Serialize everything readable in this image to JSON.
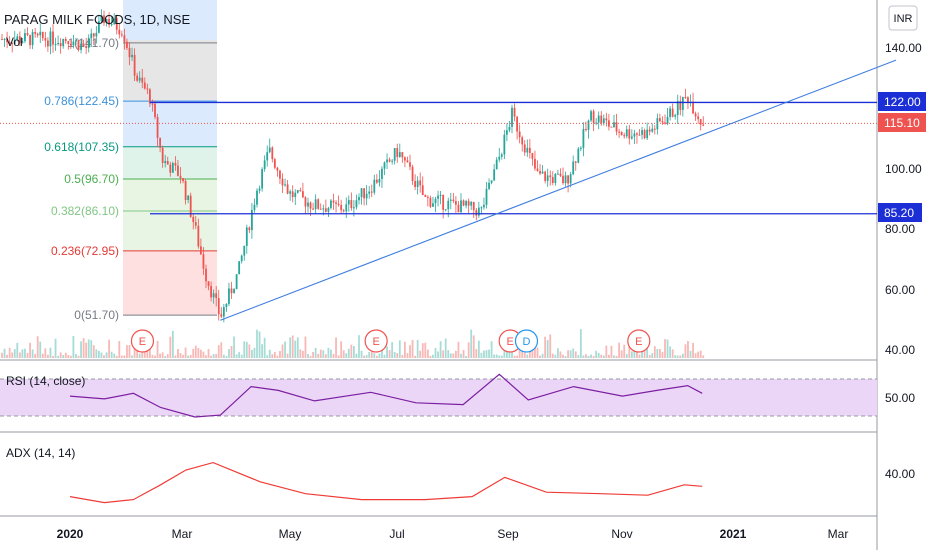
{
  "header": {
    "title": "PARAG MILK FOODS, 1D, NSE",
    "vol_label": "Vol",
    "currency": "INR"
  },
  "colors": {
    "up": "#26a69a",
    "down": "#ef5350",
    "hline": "#1c2fd6",
    "trend": "#3f7ee0",
    "rsi": "#7b1fa2",
    "adx": "#ef3b36",
    "rsi_band": "#ecd6f7",
    "axis_text": "#131722",
    "grid_sep": "#9598a1"
  },
  "chart_data": [
    {
      "type": "candlestick",
      "title": "PARAG MILK FOODS, 1D, NSE",
      "x_labels": [
        "2020",
        "Mar",
        "May",
        "Jul",
        "Sep",
        "Nov",
        "2021",
        "Mar"
      ],
      "y_ticks": [
        "140.00",
        "100.00",
        "80.00",
        "60.00",
        "40.00"
      ],
      "ylim": [
        37,
        153
      ],
      "markers": {
        "price_tags": [
          "122.00",
          "115.10",
          "85.20"
        ],
        "value_levels": [
          122.0,
          115.1,
          85.2
        ]
      },
      "fibonacci": [
        {
          "label": "1(141.70)",
          "value": 141.7,
          "color": "#787b86"
        },
        {
          "label": "0.786(122.45)",
          "value": 122.45,
          "color": "#3d91d9"
        },
        {
          "label": "0.618(107.35)",
          "value": 107.35,
          "color": "#089981"
        },
        {
          "label": "0.5(96.70)",
          "value": 96.7,
          "color": "#4caf50"
        },
        {
          "label": "0.382(86.10)",
          "value": 86.1,
          "color": "#81c784"
        },
        {
          "label": "0.236(72.95)",
          "value": 72.95,
          "color": "#e53935"
        },
        {
          "label": "0(51.70)",
          "value": 51.7,
          "color": "#787b86"
        }
      ],
      "horizontal_lines": [
        122.0,
        85.2
      ],
      "trendline": {
        "from": {
          "date": "2020-03-24",
          "value": 50.0
        },
        "to": {
          "date": "2021-04-01",
          "value": 136.0
        }
      },
      "events": [
        "E",
        "E",
        "E",
        "D",
        "E"
      ],
      "close_path": [
        {
          "date": "2020-01-01",
          "value": 143
        },
        {
          "date": "2020-01-10",
          "value": 140
        },
        {
          "date": "2020-01-20",
          "value": 150
        },
        {
          "date": "2020-01-30",
          "value": 146
        },
        {
          "date": "2020-02-07",
          "value": 130
        },
        {
          "date": "2020-02-14",
          "value": 124
        },
        {
          "date": "2020-02-21",
          "value": 103
        },
        {
          "date": "2020-03-02",
          "value": 98
        },
        {
          "date": "2020-03-09",
          "value": 83
        },
        {
          "date": "2020-03-16",
          "value": 65
        },
        {
          "date": "2020-03-24",
          "value": 51
        },
        {
          "date": "2020-04-03",
          "value": 66
        },
        {
          "date": "2020-04-13",
          "value": 93
        },
        {
          "date": "2020-04-20",
          "value": 106
        },
        {
          "date": "2020-05-01",
          "value": 92
        },
        {
          "date": "2020-05-15",
          "value": 88
        },
        {
          "date": "2020-06-01",
          "value": 87
        },
        {
          "date": "2020-06-15",
          "value": 94
        },
        {
          "date": "2020-06-30",
          "value": 106
        },
        {
          "date": "2020-07-15",
          "value": 90
        },
        {
          "date": "2020-08-01",
          "value": 88
        },
        {
          "date": "2020-08-15",
          "value": 86
        },
        {
          "date": "2020-08-25",
          "value": 104
        },
        {
          "date": "2020-09-01",
          "value": 118
        },
        {
          "date": "2020-09-15",
          "value": 98
        },
        {
          "date": "2020-10-01",
          "value": 96
        },
        {
          "date": "2020-10-15",
          "value": 118
        },
        {
          "date": "2020-11-01",
          "value": 112
        },
        {
          "date": "2020-11-15",
          "value": 112
        },
        {
          "date": "2020-12-01",
          "value": 120
        },
        {
          "date": "2020-12-07",
          "value": 124
        },
        {
          "date": "2020-12-15",
          "value": 115.1
        }
      ]
    },
    {
      "type": "line",
      "title": "RSI (14, close)",
      "y_ticks": [
        "50.00"
      ],
      "band": [
        30,
        70
      ],
      "ylim": [
        20,
        80
      ],
      "series": [
        {
          "name": "RSI (14, close)",
          "points": [
            {
              "date": "2020-01-01",
              "value": 52
            },
            {
              "date": "2020-01-20",
              "value": 49
            },
            {
              "date": "2020-02-05",
              "value": 55
            },
            {
              "date": "2020-02-20",
              "value": 40
            },
            {
              "date": "2020-03-10",
              "value": 30
            },
            {
              "date": "2020-03-24",
              "value": 32
            },
            {
              "date": "2020-04-10",
              "value": 62
            },
            {
              "date": "2020-04-25",
              "value": 58
            },
            {
              "date": "2020-05-15",
              "value": 47
            },
            {
              "date": "2020-06-15",
              "value": 56
            },
            {
              "date": "2020-07-10",
              "value": 45
            },
            {
              "date": "2020-08-05",
              "value": 43
            },
            {
              "date": "2020-08-25",
              "value": 75
            },
            {
              "date": "2020-09-10",
              "value": 48
            },
            {
              "date": "2020-10-05",
              "value": 62
            },
            {
              "date": "2020-11-01",
              "value": 52
            },
            {
              "date": "2020-11-20",
              "value": 58
            },
            {
              "date": "2020-12-07",
              "value": 63
            },
            {
              "date": "2020-12-15",
              "value": 55
            }
          ]
        }
      ]
    },
    {
      "type": "line",
      "title": "ADX (14, 14)",
      "y_ticks": [
        "40.00"
      ],
      "ylim": [
        14,
        48
      ],
      "series": [
        {
          "name": "ADX (14, 14)",
          "points": [
            {
              "date": "2020-01-01",
              "value": 22
            },
            {
              "date": "2020-01-20",
              "value": 18
            },
            {
              "date": "2020-02-05",
              "value": 20
            },
            {
              "date": "2020-02-20",
              "value": 30
            },
            {
              "date": "2020-03-05",
              "value": 40
            },
            {
              "date": "2020-03-20",
              "value": 45
            },
            {
              "date": "2020-04-15",
              "value": 32
            },
            {
              "date": "2020-05-10",
              "value": 24
            },
            {
              "date": "2020-06-10",
              "value": 20
            },
            {
              "date": "2020-07-15",
              "value": 20
            },
            {
              "date": "2020-08-10",
              "value": 22
            },
            {
              "date": "2020-08-28",
              "value": 35
            },
            {
              "date": "2020-09-20",
              "value": 25
            },
            {
              "date": "2020-10-20",
              "value": 24
            },
            {
              "date": "2020-11-15",
              "value": 23
            },
            {
              "date": "2020-12-05",
              "value": 30
            },
            {
              "date": "2020-12-15",
              "value": 29
            }
          ]
        }
      ]
    }
  ]
}
